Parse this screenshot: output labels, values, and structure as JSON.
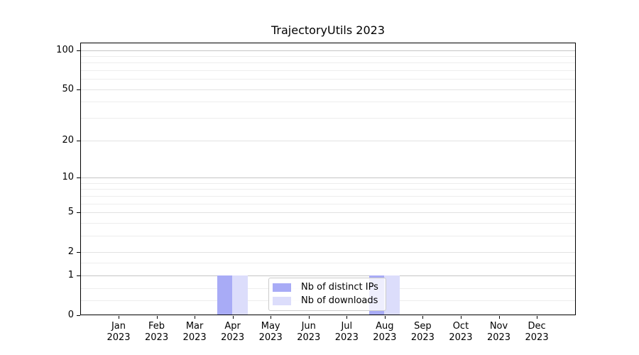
{
  "chart_data": {
    "type": "bar",
    "title": "TrajectoryUtils 2023",
    "xlabel": "",
    "ylabel": "",
    "categories": [
      {
        "month": "Jan",
        "year": "2023"
      },
      {
        "month": "Feb",
        "year": "2023"
      },
      {
        "month": "Mar",
        "year": "2023"
      },
      {
        "month": "Apr",
        "year": "2023"
      },
      {
        "month": "May",
        "year": "2023"
      },
      {
        "month": "Jun",
        "year": "2023"
      },
      {
        "month": "Jul",
        "year": "2023"
      },
      {
        "month": "Aug",
        "year": "2023"
      },
      {
        "month": "Sep",
        "year": "2023"
      },
      {
        "month": "Oct",
        "year": "2023"
      },
      {
        "month": "Nov",
        "year": "2023"
      },
      {
        "month": "Dec",
        "year": "2023"
      }
    ],
    "series": [
      {
        "name": "Nb of distinct IPs",
        "color": "#a8abf6",
        "values": [
          0,
          0,
          0,
          1,
          0,
          0,
          0,
          1,
          0,
          0,
          0,
          0
        ]
      },
      {
        "name": "Nb of downloads",
        "color": "#dcddfb",
        "values": [
          0,
          0,
          0,
          1,
          0,
          0,
          0,
          1,
          0,
          0,
          0,
          0
        ]
      }
    ],
    "yscale": "log1p",
    "ylim": [
      0,
      115
    ],
    "yticks": [
      0,
      1,
      2,
      5,
      10,
      20,
      50,
      100
    ],
    "minor_yticks": [
      0.3,
      0.6,
      1.5,
      3,
      4,
      6,
      7,
      8,
      9,
      30,
      40,
      60,
      70,
      80,
      90
    ],
    "grid": true,
    "legend_position": "lower center"
  },
  "colors": {
    "bar_distinct_ips": "#a8abf6",
    "bar_downloads": "#dcddfb",
    "decade_gridline": "#c5c5c5",
    "labeled_gridline": "#e2e2e2",
    "minor_gridline": "#ededed",
    "spine": "#000000",
    "legend_border": "#cccccc"
  }
}
